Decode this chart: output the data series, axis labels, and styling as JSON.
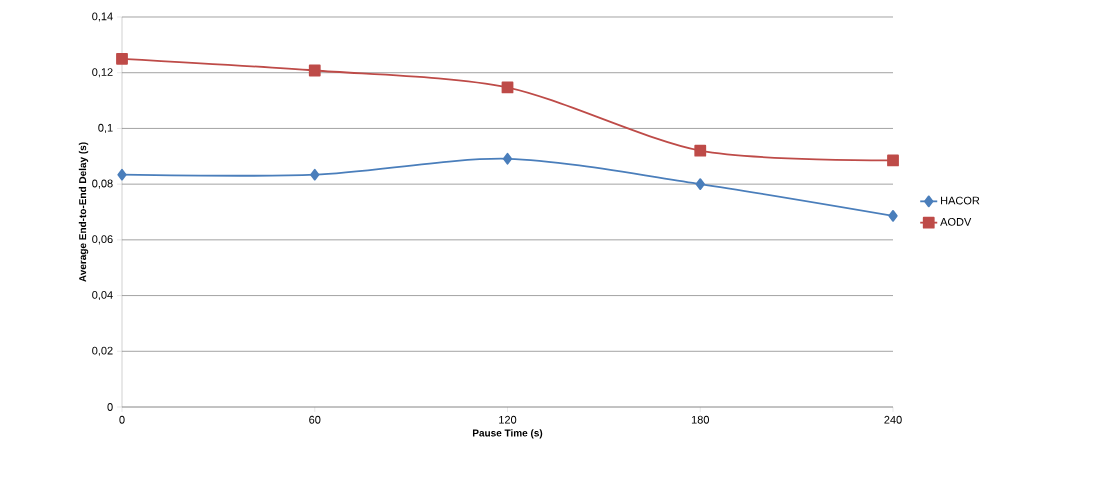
{
  "chart_data": {
    "type": "line",
    "xlabel": "Pause Time (s)",
    "ylabel": "Average End-to-End Delay (s)",
    "x": [
      0,
      60,
      120,
      180,
      240
    ],
    "series": [
      {
        "name": "HACOR",
        "color": "#4a7ebb",
        "marker": "diamond",
        "values": [
          0.0834,
          0.0834,
          0.0891,
          0.08,
          0.0686
        ]
      },
      {
        "name": "AODV",
        "color": "#be4b48",
        "marker": "square",
        "values": [
          0.125,
          0.1208,
          0.1147,
          0.092,
          0.0885
        ]
      }
    ],
    "xlim": [
      0,
      240
    ],
    "xticks": [
      0,
      60,
      120,
      180,
      240
    ],
    "ylim": [
      0,
      0.14
    ],
    "yticks": [
      0,
      {
        "value": 0.02,
        "label": "0,02"
      },
      {
        "value": 0.04,
        "label": "0,04"
      },
      {
        "value": 0.06,
        "label": "0,06"
      },
      {
        "value": 0.08,
        "label": "0,08"
      },
      {
        "value": 0.1,
        "label": "0,1"
      },
      {
        "value": 0.12,
        "label": "0,12"
      },
      {
        "value": 0.14,
        "label": "0,14"
      }
    ],
    "grid": "y",
    "legend": "right",
    "line_style": "solid"
  }
}
